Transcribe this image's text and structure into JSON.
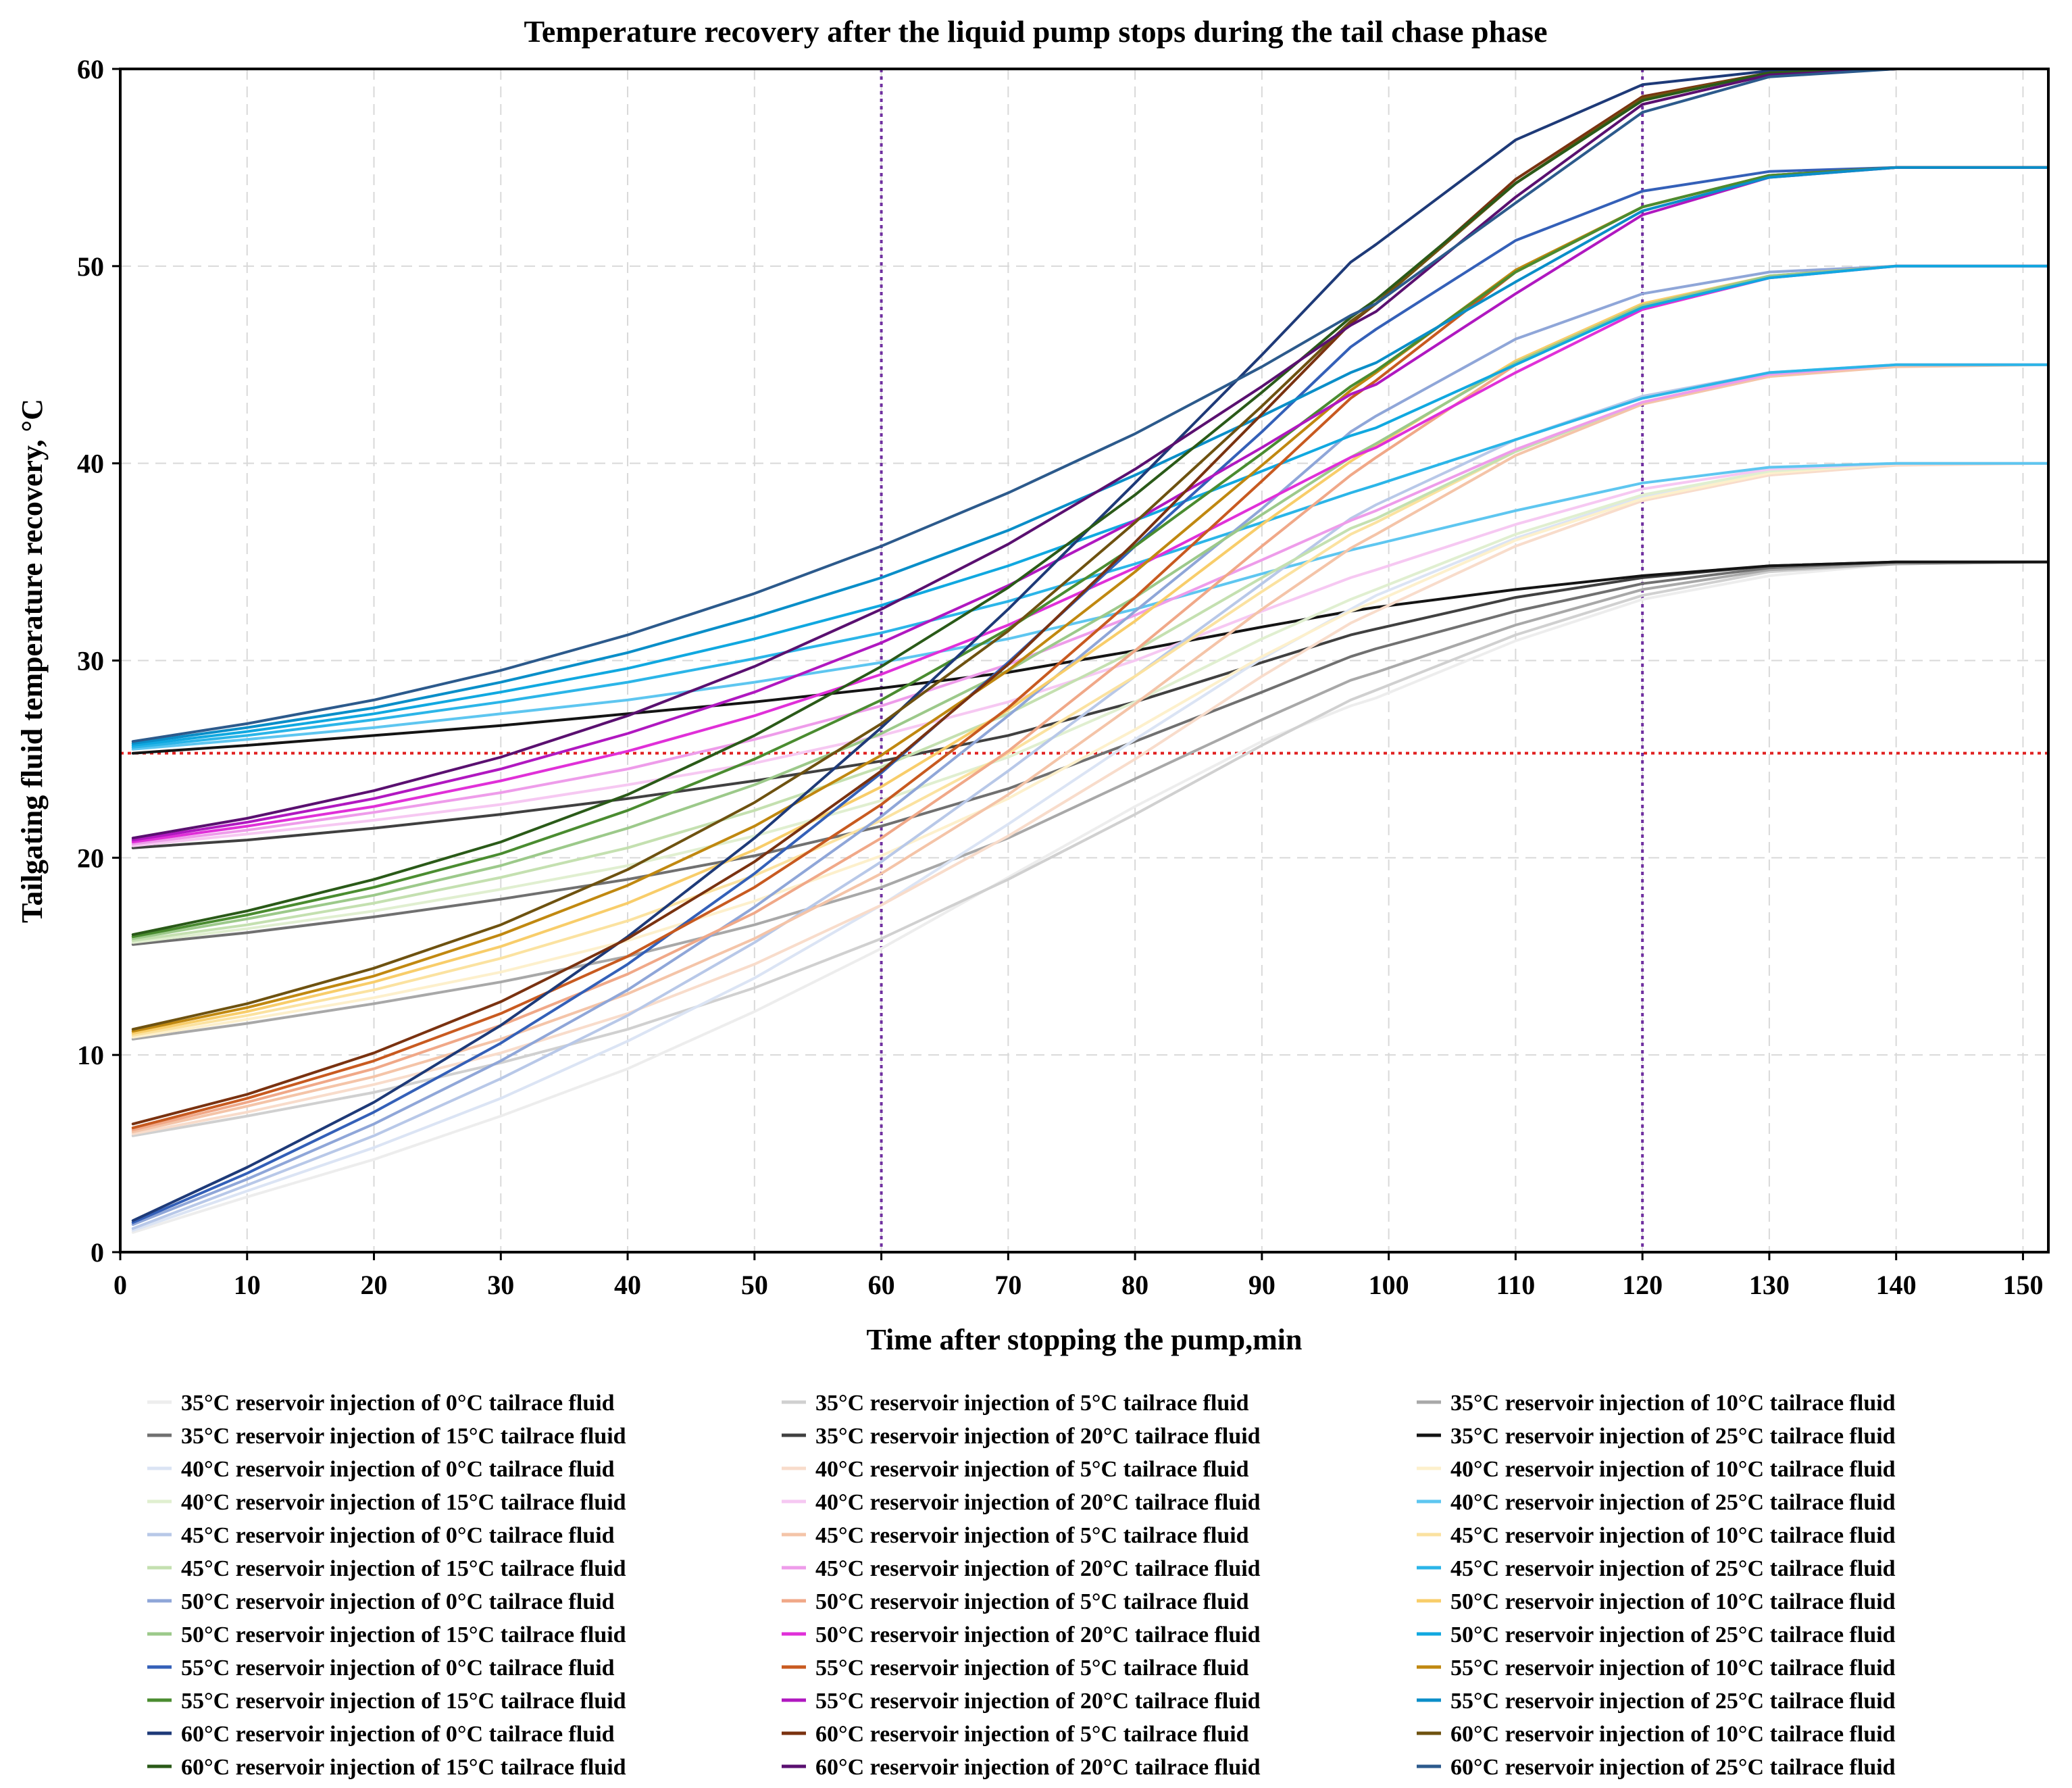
{
  "chart_data": {
    "type": "line",
    "title": "Temperature recovery after the liquid pump stops during the tail chase phase",
    "xlabel": "Time after stopping the pump,min",
    "ylabel": "Tailgating fluid temperature recovery,  °C",
    "xlim": [
      0,
      152
    ],
    "ylim": [
      0,
      60
    ],
    "xticks": [
      0,
      10,
      20,
      30,
      40,
      50,
      60,
      70,
      80,
      90,
      100,
      110,
      120,
      130,
      140,
      150
    ],
    "yticks": [
      0,
      10,
      20,
      30,
      40,
      50,
      60
    ],
    "x_tick_labels": [
      "0",
      "10",
      "20",
      "30",
      "40",
      "50",
      "60",
      "70",
      "80",
      "90",
      "100",
      "110",
      "120",
      "130",
      "140",
      "150"
    ],
    "y_tick_labels": [
      "0",
      "10",
      "20",
      "30",
      "40",
      "50",
      "60"
    ],
    "grid": true,
    "legend_position": "bottom",
    "reference_lines": [
      {
        "orientation": "horizontal",
        "value": 25.3,
        "color": "#e02020",
        "style": "dotted"
      },
      {
        "orientation": "vertical",
        "value": 60,
        "color": "#7030a0",
        "style": "dotted"
      },
      {
        "orientation": "vertical",
        "value": 120,
        "color": "#7030a0",
        "style": "dotted"
      }
    ],
    "x": [
      1,
      10,
      20,
      30,
      40,
      50,
      60,
      70,
      80,
      90,
      97,
      99,
      110,
      120,
      130,
      140,
      152
    ],
    "series": [
      {
        "name": "35°C reservoir injection of 0°C tailrace fluid",
        "color": "#ededed",
        "values": [
          1.0,
          2.8,
          4.7,
          6.9,
          9.3,
          12.2,
          15.4,
          19.0,
          22.6,
          25.9,
          27.7,
          28.1,
          31.0,
          33.1,
          34.3,
          34.9,
          35.0
        ]
      },
      {
        "name": "35°C reservoir injection of 5°C tailrace fluid",
        "color": "#d0d0d0",
        "values": [
          5.9,
          6.9,
          8.1,
          9.6,
          11.3,
          13.4,
          15.9,
          18.9,
          22.2,
          25.7,
          28.0,
          28.5,
          31.3,
          33.3,
          34.5,
          34.9,
          35.0
        ]
      },
      {
        "name": "35°C reservoir injection of 10°C tailrace fluid",
        "color": "#a8a8a8",
        "values": [
          10.8,
          11.6,
          12.6,
          13.7,
          15.0,
          16.6,
          18.5,
          21.0,
          24.0,
          27.0,
          29.0,
          29.4,
          31.8,
          33.6,
          34.6,
          34.9,
          35.0
        ]
      },
      {
        "name": "35°C reservoir injection of 15°C tailrace fluid",
        "color": "#707070",
        "values": [
          15.6,
          16.2,
          17.0,
          17.9,
          18.9,
          20.1,
          21.6,
          23.5,
          25.9,
          28.4,
          30.2,
          30.6,
          32.5,
          33.9,
          34.7,
          35.0,
          35.0
        ]
      },
      {
        "name": "35°C reservoir injection of 20°C tailrace fluid",
        "color": "#404040",
        "values": [
          20.5,
          20.9,
          21.5,
          22.2,
          23.0,
          23.9,
          24.9,
          26.2,
          27.9,
          29.9,
          31.3,
          31.6,
          33.2,
          34.2,
          34.8,
          35.0,
          35.0
        ]
      },
      {
        "name": "35°C reservoir injection of 25°C tailrace fluid",
        "color": "#141414",
        "values": [
          25.3,
          25.7,
          26.2,
          26.7,
          27.3,
          27.9,
          28.6,
          29.4,
          30.5,
          31.7,
          32.5,
          32.7,
          33.6,
          34.3,
          34.8,
          35.0,
          35.0
        ]
      },
      {
        "name": "40°C reservoir injection of 0°C tailrace fluid",
        "color": "#dbe4f4",
        "values": [
          1.1,
          3.1,
          5.3,
          7.8,
          10.7,
          13.9,
          17.6,
          21.7,
          26.0,
          30.1,
          32.6,
          33.3,
          36.2,
          38.3,
          39.5,
          40.0,
          40.0
        ]
      },
      {
        "name": "40°C reservoir injection of 5°C tailrace fluid",
        "color": "#f8dccb",
        "values": [
          6.0,
          7.1,
          8.5,
          10.1,
          12.1,
          14.6,
          17.6,
          21.1,
          25.0,
          29.2,
          31.9,
          32.5,
          35.8,
          38.1,
          39.4,
          39.9,
          40.0
        ]
      },
      {
        "name": "40°C reservoir injection of 10°C tailrace fluid",
        "color": "#fdf0cc",
        "values": [
          10.9,
          11.8,
          12.9,
          14.2,
          15.8,
          17.8,
          20.1,
          23.0,
          26.5,
          30.2,
          32.5,
          33.0,
          36.1,
          38.2,
          39.5,
          40.0,
          40.0
        ]
      },
      {
        "name": "40°C reservoir injection of 15°C tailrace fluid",
        "color": "#e0efd0",
        "values": [
          15.7,
          16.4,
          17.3,
          18.4,
          19.6,
          21.1,
          22.9,
          25.1,
          27.9,
          31.1,
          33.1,
          33.6,
          36.4,
          38.4,
          39.6,
          40.0,
          40.0
        ]
      },
      {
        "name": "40°C reservoir injection of 20°C tailrace fluid",
        "color": "#f6c8f2",
        "values": [
          20.6,
          21.2,
          21.9,
          22.7,
          23.7,
          24.8,
          26.2,
          27.9,
          30.0,
          32.5,
          34.2,
          34.6,
          36.9,
          38.7,
          39.7,
          40.0,
          40.0
        ]
      },
      {
        "name": "40°C reservoir injection of 25°C tailrace fluid",
        "color": "#5ec6f0",
        "values": [
          25.5,
          26.0,
          26.6,
          27.3,
          28.0,
          28.9,
          29.9,
          31.1,
          32.6,
          34.4,
          35.6,
          35.9,
          37.6,
          39.0,
          39.8,
          40.0,
          40.0
        ]
      },
      {
        "name": "45°C reservoir injection of 0°C tailrace fluid",
        "color": "#b8c8e8",
        "values": [
          1.2,
          3.4,
          5.9,
          8.8,
          12.0,
          15.7,
          19.8,
          24.4,
          29.2,
          33.9,
          37.2,
          37.9,
          41.2,
          43.4,
          44.6,
          45.0,
          45.0
        ]
      },
      {
        "name": "45°C reservoir injection of 5°C tailrace fluid",
        "color": "#f4c4a8",
        "values": [
          6.1,
          7.4,
          8.9,
          10.8,
          13.1,
          15.9,
          19.2,
          23.2,
          27.8,
          32.6,
          35.7,
          36.4,
          40.4,
          43.0,
          44.4,
          44.9,
          45.0
        ]
      },
      {
        "name": "45°C reservoir injection of 10°C tailrace fluid",
        "color": "#fbe2a0",
        "values": [
          11.0,
          12.0,
          13.3,
          14.9,
          16.8,
          19.1,
          21.9,
          25.3,
          29.2,
          33.5,
          36.4,
          37.0,
          40.6,
          43.1,
          44.5,
          45.0,
          45.0
        ]
      },
      {
        "name": "45°C reservoir injection of 15°C tailrace fluid",
        "color": "#c4e0b0",
        "values": [
          15.8,
          16.6,
          17.7,
          19.0,
          20.5,
          22.4,
          24.6,
          27.3,
          30.5,
          34.2,
          36.7,
          37.2,
          40.6,
          43.1,
          44.5,
          45.0,
          45.0
        ]
      },
      {
        "name": "45°C reservoir injection of 20°C tailrace fluid",
        "color": "#ee9cea",
        "values": [
          20.7,
          21.4,
          22.3,
          23.3,
          24.5,
          26.0,
          27.7,
          29.8,
          32.3,
          35.1,
          37.1,
          37.6,
          40.7,
          43.1,
          44.5,
          45.0,
          45.0
        ]
      },
      {
        "name": "45°C reservoir injection of 25°C tailrace fluid",
        "color": "#2bb5e8",
        "values": [
          25.6,
          26.2,
          27.0,
          27.9,
          28.9,
          30.1,
          31.4,
          33.0,
          34.9,
          37.0,
          38.5,
          38.9,
          41.2,
          43.3,
          44.6,
          45.0,
          45.0
        ]
      },
      {
        "name": "50°C reservoir injection of 0°C tailrace fluid",
        "color": "#8fa6d8",
        "values": [
          1.4,
          3.7,
          6.5,
          9.7,
          13.3,
          17.5,
          22.1,
          27.2,
          32.5,
          37.7,
          41.6,
          42.4,
          46.3,
          48.6,
          49.7,
          50.0,
          50.0
        ]
      },
      {
        "name": "50°C reservoir injection of 5°C tailrace fluid",
        "color": "#f0a888",
        "values": [
          6.2,
          7.6,
          9.3,
          11.5,
          14.1,
          17.2,
          21.0,
          25.4,
          30.5,
          35.8,
          39.4,
          40.3,
          45.0,
          48.0,
          49.5,
          50.0,
          50.0
        ]
      },
      {
        "name": "50°C reservoir injection of 10°C tailrace fluid",
        "color": "#f8cd6a",
        "values": [
          11.1,
          12.2,
          13.7,
          15.5,
          17.7,
          20.4,
          23.6,
          27.5,
          32.0,
          36.9,
          40.1,
          40.9,
          45.2,
          48.1,
          49.5,
          50.0,
          50.0
        ]
      },
      {
        "name": "50°C reservoir injection of 15°C tailrace fluid",
        "color": "#9cc98a",
        "values": [
          15.9,
          16.9,
          18.1,
          19.6,
          21.5,
          23.7,
          26.3,
          29.5,
          33.2,
          37.4,
          40.3,
          41.0,
          45.1,
          48.0,
          49.5,
          50.0,
          50.0
        ]
      },
      {
        "name": "50°C reservoir injection of 20°C tailrace fluid",
        "color": "#e030d8",
        "values": [
          20.8,
          21.6,
          22.6,
          23.9,
          25.4,
          27.2,
          29.3,
          31.8,
          34.7,
          38.0,
          40.3,
          40.8,
          44.6,
          47.8,
          49.4,
          50.0,
          50.0
        ]
      },
      {
        "name": "50°C reservoir injection of 25°C tailrace fluid",
        "color": "#10a8e0",
        "values": [
          25.7,
          26.4,
          27.3,
          28.4,
          29.6,
          31.1,
          32.8,
          34.8,
          37.1,
          39.6,
          41.4,
          41.8,
          45.0,
          47.9,
          49.4,
          50.0,
          50.0
        ]
      },
      {
        "name": "55°C reservoir injection of 0°C tailrace fluid",
        "color": "#3460b8",
        "values": [
          1.5,
          4.0,
          7.1,
          10.6,
          14.6,
          19.2,
          24.3,
          29.9,
          35.8,
          41.6,
          45.9,
          46.8,
          51.3,
          53.8,
          54.8,
          55.0,
          55.0
        ]
      },
      {
        "name": "55°C reservoir injection of 5°C tailrace fluid",
        "color": "#c85a20",
        "values": [
          6.3,
          7.8,
          9.7,
          12.1,
          15.0,
          18.5,
          22.7,
          27.6,
          33.2,
          39.1,
          43.3,
          44.2,
          49.7,
          53.0,
          54.6,
          55.0,
          55.0
        ]
      },
      {
        "name": "55°C reservoir injection of 10°C tailrace fluid",
        "color": "#c08810",
        "values": [
          11.2,
          12.4,
          14.0,
          16.1,
          18.6,
          21.6,
          25.2,
          29.5,
          34.5,
          39.9,
          43.7,
          44.6,
          49.8,
          53.0,
          54.6,
          55.0,
          55.0
        ]
      },
      {
        "name": "55°C reservoir injection of 15°C tailrace fluid",
        "color": "#4a8c30",
        "values": [
          16.0,
          17.1,
          18.5,
          20.2,
          22.4,
          25.0,
          28.0,
          31.6,
          35.8,
          40.5,
          43.9,
          44.7,
          49.7,
          53.0,
          54.6,
          55.0,
          55.0
        ]
      },
      {
        "name": "55°C reservoir injection of 20°C tailrace fluid",
        "color": "#b018c0",
        "values": [
          20.9,
          21.8,
          23.0,
          24.5,
          26.3,
          28.4,
          30.9,
          33.8,
          37.1,
          40.8,
          43.5,
          44.0,
          48.6,
          52.6,
          54.5,
          55.0,
          55.0
        ]
      },
      {
        "name": "55°C reservoir injection of 25°C tailrace fluid",
        "color": "#0a8ec8",
        "values": [
          25.8,
          26.6,
          27.6,
          28.9,
          30.4,
          32.2,
          34.2,
          36.6,
          39.4,
          42.4,
          44.6,
          45.1,
          49.2,
          52.8,
          54.5,
          55.0,
          55.0
        ]
      },
      {
        "name": "60°C reservoir injection of 0°C tailrace fluid",
        "color": "#1e3a78",
        "values": [
          1.6,
          4.3,
          7.6,
          11.5,
          16.0,
          21.0,
          26.6,
          32.6,
          39.0,
          45.5,
          50.2,
          51.1,
          56.4,
          59.2,
          59.9,
          60.0,
          60.0
        ]
      },
      {
        "name": "60°C reservoir injection of 5°C tailrace fluid",
        "color": "#7a3210",
        "values": [
          6.5,
          8.0,
          10.1,
          12.7,
          15.9,
          19.8,
          24.4,
          29.8,
          36.0,
          42.5,
          47.1,
          48.1,
          54.4,
          58.6,
          59.8,
          60.0,
          60.0
        ]
      },
      {
        "name": "60°C reservoir injection of 10°C tailrace fluid",
        "color": "#6e5210",
        "values": [
          11.3,
          12.6,
          14.4,
          16.6,
          19.4,
          22.8,
          26.8,
          31.5,
          37.0,
          42.9,
          47.2,
          48.1,
          54.2,
          58.5,
          59.8,
          60.0,
          60.0
        ]
      },
      {
        "name": "60°C reservoir injection of 15°C tailrace fluid",
        "color": "#2a5a18",
        "values": [
          16.1,
          17.3,
          18.9,
          20.8,
          23.2,
          26.2,
          29.7,
          33.7,
          38.4,
          43.6,
          47.4,
          48.3,
          54.2,
          58.4,
          59.8,
          60.0,
          60.0
        ]
      },
      {
        "name": "60°C reservoir injection of 20°C tailrace fluid",
        "color": "#5a1070",
        "values": [
          21.0,
          22.0,
          23.4,
          25.1,
          27.2,
          29.7,
          32.6,
          35.9,
          39.7,
          43.9,
          47.0,
          47.7,
          53.5,
          58.2,
          59.7,
          60.0,
          60.0
        ]
      },
      {
        "name": "60°C reservoir injection of 25°C tailrace fluid",
        "color": "#2c5a8c",
        "values": [
          25.9,
          26.8,
          28.0,
          29.5,
          31.3,
          33.4,
          35.8,
          38.5,
          41.5,
          44.9,
          47.5,
          48.1,
          53.2,
          57.8,
          59.6,
          60.0,
          60.0
        ]
      }
    ]
  }
}
